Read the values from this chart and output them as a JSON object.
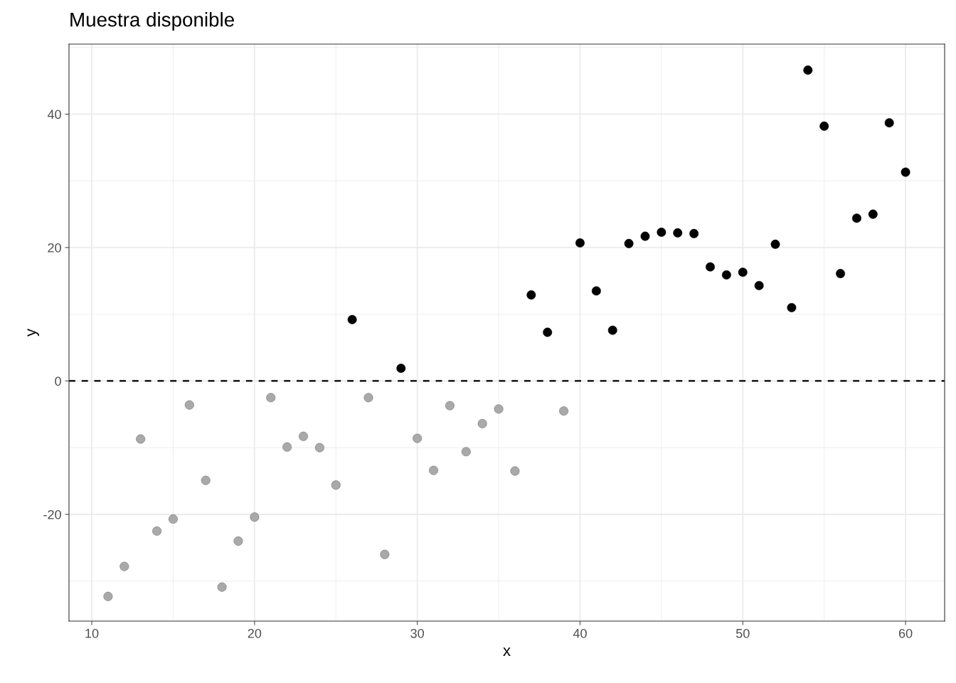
{
  "chart_data": {
    "type": "scatter",
    "title": "Muestra disponible",
    "xlabel": "x",
    "ylabel": "y",
    "series": [
      {
        "color": "#a9a9a9",
        "x": [
          11,
          12,
          13,
          14,
          15,
          16,
          17,
          18,
          19,
          20,
          21,
          22,
          23,
          24,
          25,
          27,
          28,
          30,
          31,
          32,
          33,
          34,
          35,
          36,
          39
        ],
        "values": [
          -32.3,
          -27.8,
          -8.7,
          -22.5,
          -20.7,
          -3.6,
          -14.9,
          -30.9,
          -24.0,
          -20.4,
          -2.5,
          -9.9,
          -8.3,
          -10.0,
          -15.6,
          -2.5,
          -26.0,
          -8.6,
          -13.4,
          -3.7,
          -10.6,
          -6.4,
          -4.2,
          -13.5,
          -4.5
        ]
      },
      {
        "color": "#000000",
        "x": [
          26,
          29,
          37,
          38,
          40,
          41,
          42,
          43,
          44,
          45,
          46,
          47,
          48,
          49,
          50,
          51,
          52,
          53,
          54,
          55,
          56,
          57,
          58,
          59,
          60
        ],
        "values": [
          9.2,
          1.9,
          12.9,
          7.3,
          20.7,
          13.5,
          7.6,
          20.6,
          21.7,
          22.3,
          22.2,
          22.1,
          17.1,
          15.9,
          16.3,
          14.3,
          20.5,
          11.0,
          46.6,
          38.2,
          16.1,
          24.4,
          25.0,
          38.7,
          31.3
        ]
      }
    ],
    "xlim": [
      8.6,
      62.4
    ],
    "ylim": [
      -36,
      50.5
    ],
    "xticks": [
      10,
      20,
      30,
      40,
      50,
      60
    ],
    "yticks": [
      -20,
      0,
      20,
      40
    ],
    "ref_lines": [
      {
        "axis": "y",
        "value": 0,
        "color": "#000000",
        "line_style": "dashed"
      }
    ],
    "grid": true,
    "marker": "circle",
    "legend": false
  }
}
